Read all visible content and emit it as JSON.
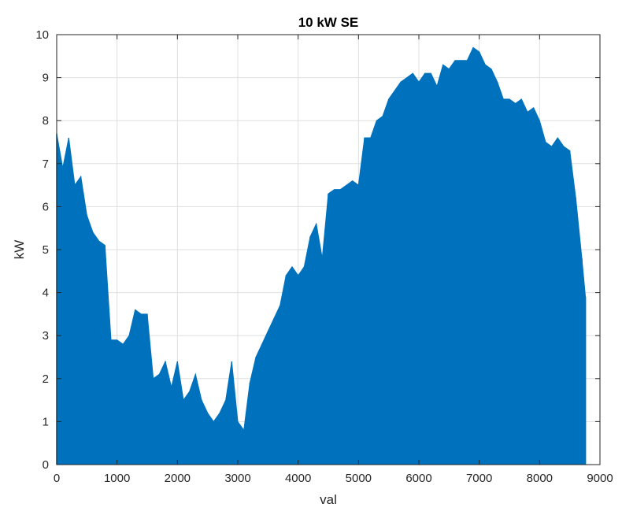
{
  "chart_data": {
    "type": "area",
    "title": "10 kW SE",
    "xlabel": "val",
    "ylabel": "kW",
    "xlim": [
      0,
      9000
    ],
    "ylim": [
      0,
      10
    ],
    "xticks": [
      0,
      1000,
      2000,
      3000,
      4000,
      5000,
      6000,
      7000,
      8000,
      9000
    ],
    "yticks": [
      0,
      1,
      2,
      3,
      4,
      5,
      6,
      7,
      8,
      9,
      10
    ],
    "grid": true,
    "color": "#0072BD",
    "series": [
      {
        "x": [
          0,
          100,
          200,
          300,
          400,
          500,
          600,
          700,
          800,
          900,
          1000,
          1100,
          1200,
          1300,
          1400,
          1500,
          1600,
          1700,
          1800,
          1900,
          2000,
          2100,
          2200,
          2300,
          2400,
          2500,
          2600,
          2700,
          2800,
          2900,
          3000,
          3100,
          3200,
          3300,
          3400,
          3500,
          3600,
          3700,
          3800,
          3900,
          4000,
          4100,
          4200,
          4300,
          4400,
          4500,
          4600,
          4700,
          4800,
          4900,
          5000,
          5100,
          5200,
          5300,
          5400,
          5500,
          5600,
          5700,
          5800,
          5900,
          6000,
          6100,
          6200,
          6300,
          6400,
          6500,
          6600,
          6700,
          6800,
          6900,
          7000,
          7100,
          7200,
          7300,
          7400,
          7500,
          7600,
          7700,
          7800,
          7900,
          8000,
          8100,
          8200,
          8300,
          8400,
          8500,
          8600,
          8700,
          8760
        ],
        "y": [
          7.7,
          6.9,
          7.6,
          6.5,
          6.7,
          5.8,
          5.4,
          5.2,
          5.1,
          2.9,
          2.9,
          2.8,
          3.0,
          3.6,
          3.5,
          3.5,
          2.0,
          2.1,
          2.4,
          1.8,
          2.4,
          1.5,
          1.7,
          2.1,
          1.5,
          1.2,
          1.0,
          1.2,
          1.5,
          2.4,
          1.0,
          0.8,
          1.9,
          2.5,
          2.8,
          3.1,
          3.4,
          3.7,
          4.4,
          4.6,
          4.4,
          4.6,
          5.3,
          5.6,
          4.8,
          6.3,
          6.4,
          6.4,
          6.5,
          6.6,
          6.5,
          7.6,
          7.6,
          8.0,
          8.1,
          8.5,
          8.7,
          8.9,
          9.0,
          9.1,
          8.9,
          9.1,
          9.1,
          8.8,
          9.3,
          9.2,
          9.4,
          9.4,
          9.4,
          9.7,
          9.6,
          9.3,
          9.2,
          8.9,
          8.5,
          8.5,
          8.4,
          8.5,
          8.2,
          8.3,
          8.0,
          7.5,
          7.4,
          7.6,
          7.4,
          7.3,
          6.2,
          4.8,
          3.9
        ]
      }
    ]
  }
}
